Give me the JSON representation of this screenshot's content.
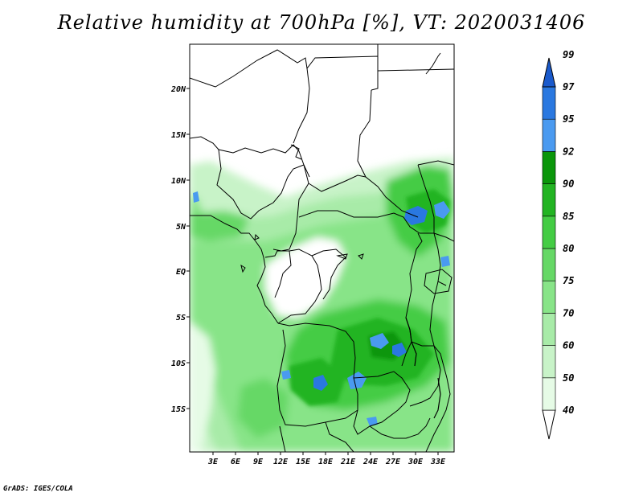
{
  "title": "Relative humidity at 700hPa [%], VT: 2020031406",
  "credit": "GrADS: IGES/COLA",
  "map": {
    "lat_labels": [
      "20N",
      "15N",
      "10N",
      "5N",
      "EQ",
      "5S",
      "10S",
      "15S"
    ],
    "lon_labels": [
      "3E",
      "6E",
      "9E",
      "12E",
      "15E",
      "18E",
      "21E",
      "24E",
      "27E",
      "30E",
      "33E"
    ]
  },
  "colorbar": {
    "levels": [
      "40",
      "50",
      "60",
      "70",
      "75",
      "80",
      "85",
      "90",
      "92",
      "95",
      "97",
      "99"
    ],
    "colors": [
      "#ffffff",
      "#e6fbe6",
      "#c8f3c8",
      "#a8eba8",
      "#88e488",
      "#66d866",
      "#44cc44",
      "#22b422",
      "#0a960a",
      "#4a9af0",
      "#2a78e0",
      "#1a5acc"
    ]
  }
}
